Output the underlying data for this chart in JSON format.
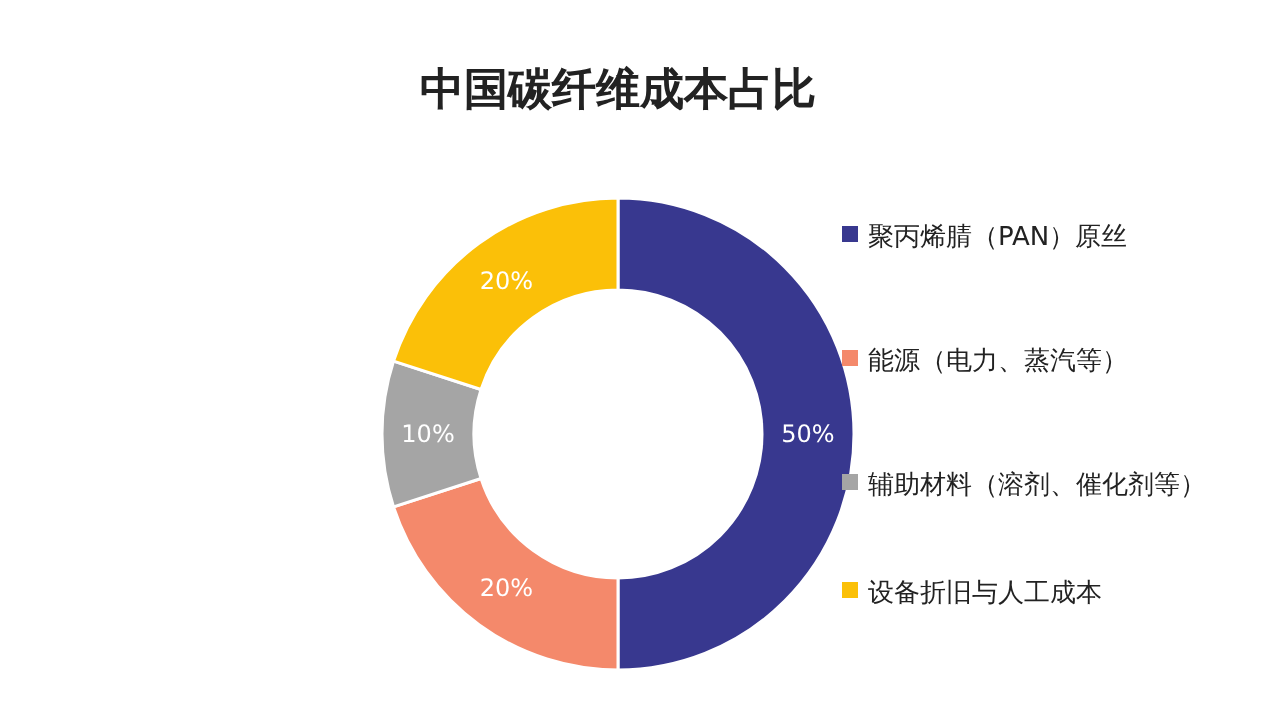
{
  "chart_data": {
    "type": "donut",
    "title": "中国碳纤维成本占比",
    "categories": [
      "聚丙烯腈（PAN）原丝",
      "能源（电力、蒸汽等）",
      "辅助材料（溶剂、催化剂等）",
      "设备折旧与人工成本"
    ],
    "values": [
      50,
      20,
      10,
      20
    ],
    "colors": [
      "#38388f",
      "#f4896b",
      "#a5a5a5",
      "#fbc008"
    ],
    "value_labels": [
      "50%",
      "20%",
      "10%",
      "20%"
    ],
    "legend": "right"
  }
}
